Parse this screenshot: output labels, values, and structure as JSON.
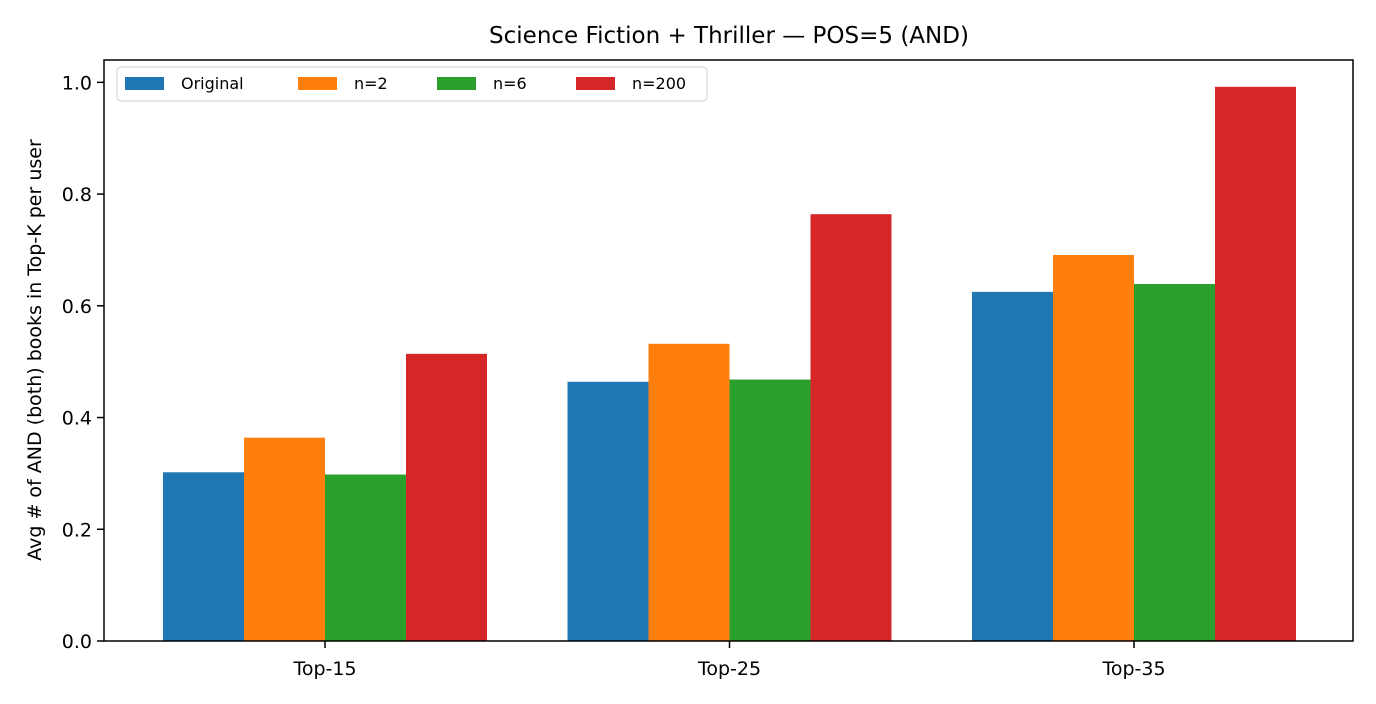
{
  "chart_data": {
    "type": "bar",
    "title": "Science Fiction + Thriller — POS=5 (AND)",
    "xlabel": "",
    "ylabel": "Avg # of AND (both) books in Top-K per user",
    "categories": [
      "Top-15",
      "Top-25",
      "Top-35"
    ],
    "ylim": [
      0,
      1.04
    ],
    "yticks": [
      0.0,
      0.2,
      0.4,
      0.6,
      0.8,
      1.0
    ],
    "ytick_labels": [
      "0.0",
      "0.2",
      "0.4",
      "0.6",
      "0.8",
      "1.0"
    ],
    "grid": false,
    "legend_position": "top-left",
    "series": [
      {
        "name": "Original",
        "color": "#1f77b4",
        "values": [
          0.302,
          0.464,
          0.625
        ]
      },
      {
        "name": "n=2",
        "color": "#ff7f0e",
        "values": [
          0.364,
          0.532,
          0.691
        ]
      },
      {
        "name": "n=6",
        "color": "#2ca02c",
        "values": [
          0.298,
          0.468,
          0.639
        ]
      },
      {
        "name": "n=200",
        "color": "#d62728",
        "values": [
          0.514,
          0.764,
          0.992
        ]
      }
    ]
  }
}
